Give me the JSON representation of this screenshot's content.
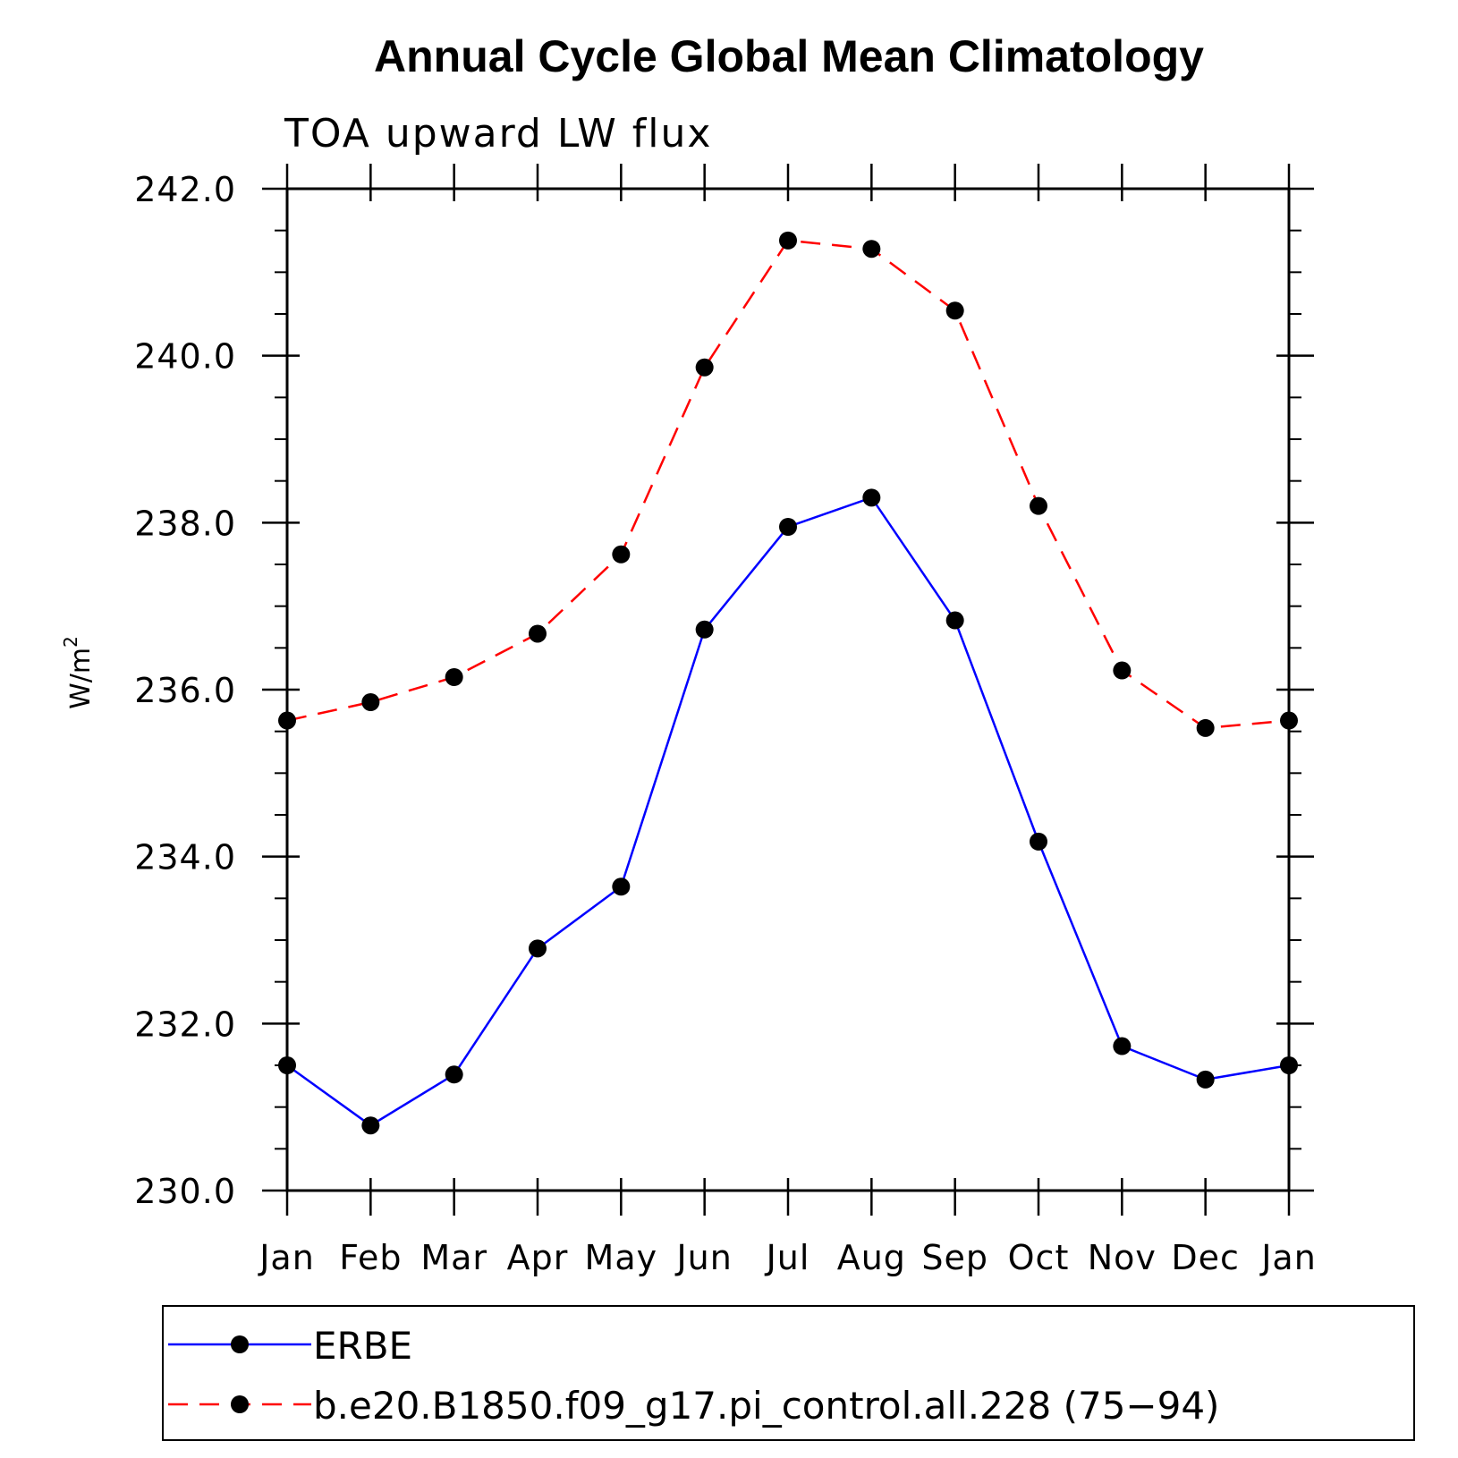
{
  "chart_data": {
    "type": "line",
    "title": "Annual Cycle Global Mean Climatology",
    "subtitle": "TOA upward LW flux",
    "ylabel": "W/m",
    "ylabel_superscript": "2",
    "categories": [
      "Jan",
      "Feb",
      "Mar",
      "Apr",
      "May",
      "Jun",
      "Jul",
      "Aug",
      "Sep",
      "Oct",
      "Nov",
      "Dec",
      "Jan"
    ],
    "ylim": [
      230.0,
      242.0
    ],
    "ytick_labels": [
      "230.0",
      "232.0",
      "234.0",
      "236.0",
      "238.0",
      "240.0",
      "242.0"
    ],
    "series": [
      {
        "name": "ERBE",
        "color": "#0000ff",
        "line_style": "solid",
        "marker": "filled-circle",
        "values": [
          231.5,
          230.78,
          231.39,
          232.9,
          233.64,
          236.72,
          237.95,
          238.3,
          236.83,
          234.18,
          231.73,
          231.33,
          231.5
        ]
      },
      {
        "name": "b.e20.B1850.f09_g17.pi_control.all.228 (75−94)",
        "color": "#ff0000",
        "line_style": "dashed",
        "marker": "filled-circle",
        "values": [
          235.63,
          235.85,
          236.15,
          236.67,
          237.62,
          239.86,
          241.38,
          241.28,
          240.54,
          238.2,
          236.23,
          235.54,
          235.63
        ]
      }
    ],
    "grid": false,
    "legend_placement": "bottom"
  }
}
